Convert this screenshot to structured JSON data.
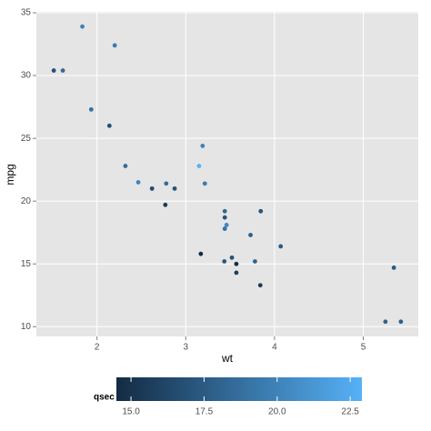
{
  "chart_data": {
    "type": "scatter",
    "x_label": "wt",
    "y_label": "mpg",
    "x": [
      2.62,
      2.875,
      2.32,
      3.215,
      3.44,
      3.46,
      3.57,
      3.19,
      3.15,
      3.44,
      3.44,
      4.07,
      3.73,
      3.78,
      5.25,
      5.424,
      5.345,
      2.2,
      1.615,
      1.835,
      2.465,
      3.52,
      3.435,
      3.84,
      3.845,
      1.935,
      2.14,
      1.513,
      3.17,
      2.77,
      3.57,
      2.78
    ],
    "values": [
      21.0,
      21.0,
      22.8,
      21.4,
      18.7,
      18.1,
      14.3,
      24.4,
      22.8,
      19.2,
      17.8,
      16.4,
      17.3,
      15.2,
      10.4,
      10.4,
      14.7,
      32.4,
      30.4,
      33.9,
      21.5,
      15.5,
      15.2,
      13.3,
      19.2,
      27.3,
      26.0,
      30.4,
      15.8,
      19.7,
      15.0,
      21.4
    ],
    "color_values": [
      16.46,
      17.02,
      18.61,
      19.44,
      17.02,
      20.22,
      15.84,
      20.0,
      22.9,
      18.3,
      18.9,
      17.4,
      17.6,
      18.0,
      17.98,
      17.82,
      17.42,
      19.47,
      18.52,
      19.9,
      20.01,
      16.87,
      17.3,
      15.41,
      17.05,
      18.9,
      16.7,
      16.9,
      14.5,
      15.5,
      14.6,
      18.6
    ],
    "color_label": "qsec",
    "color_range": [
      "#132B43",
      "#56B1F7"
    ],
    "color_lim": [
      14.5,
      22.9
    ],
    "color_ticks": [
      {
        "value": 15,
        "label": "15.0"
      },
      17.5,
      {
        "value": 20,
        "label": "20.0"
      },
      22.5
    ],
    "xlim": [
      1.317,
      5.62
    ],
    "xticks": [
      2,
      3,
      4,
      5
    ],
    "ylim": [
      9.225,
      35.075
    ],
    "yticks": [
      10,
      15,
      20,
      25,
      30,
      35
    ],
    "grid": true,
    "legend_position": "bottom",
    "background": "#E5E5E5"
  }
}
